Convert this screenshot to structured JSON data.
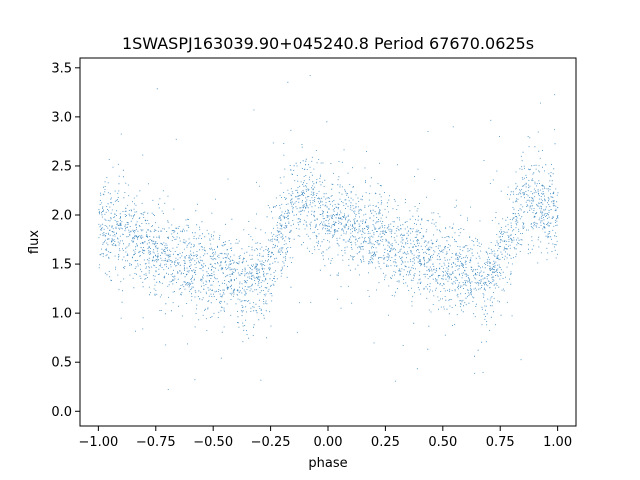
{
  "chart_data": {
    "type": "scatter",
    "title": "1SWASPJ163039.90+045240.8 Period 67670.0625s",
    "xlabel": "phase",
    "ylabel": "flux",
    "xlim": [
      -1.08,
      1.08
    ],
    "ylim": [
      -0.15,
      3.6
    ],
    "xticks": [
      -1.0,
      -0.75,
      -0.5,
      -0.25,
      0.0,
      0.25,
      0.5,
      0.75,
      1.0
    ],
    "xtick_labels": [
      "−1.00",
      "−0.75",
      "−0.50",
      "−0.25",
      "0.00",
      "0.25",
      "0.50",
      "0.75",
      "1.00"
    ],
    "yticks": [
      0.0,
      0.5,
      1.0,
      1.5,
      2.0,
      2.5,
      3.0,
      3.5
    ],
    "ytick_labels": [
      "0.0",
      "0.5",
      "1.0",
      "1.5",
      "2.0",
      "2.5",
      "3.0",
      "3.5"
    ],
    "grid": false,
    "marker_color": "#1f77b4",
    "series": [
      {
        "phase": [
          -1.0,
          -0.9,
          -0.8,
          -0.7,
          -0.6,
          -0.5,
          -0.4,
          -0.33,
          -0.28,
          -0.22,
          -0.15,
          -0.1,
          0.0,
          0.1,
          0.2,
          0.3,
          0.4,
          0.5,
          0.6,
          0.67,
          0.72,
          0.78,
          0.85,
          0.9,
          1.0
        ],
        "flux": [
          1.9,
          1.8,
          1.68,
          1.58,
          1.5,
          1.42,
          1.35,
          1.3,
          1.35,
          1.75,
          2.1,
          2.15,
          2.0,
          1.88,
          1.78,
          1.68,
          1.58,
          1.5,
          1.42,
          1.32,
          1.4,
          1.8,
          2.1,
          2.15,
          1.95
        ],
        "scatter_std": 0.22
      }
    ]
  }
}
